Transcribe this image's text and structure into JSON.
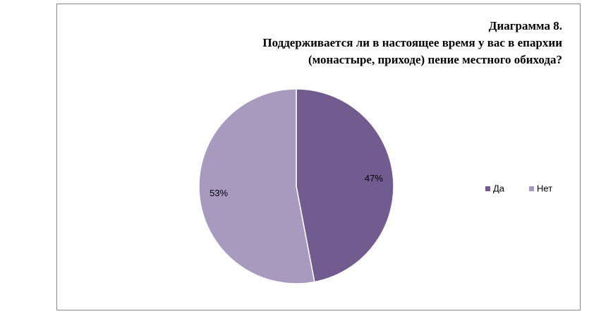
{
  "chart_data": {
    "type": "pie",
    "title": "Диаграмма  8.",
    "subtitle": [
      "Поддерживается  ли в настоящее время у вас в епархии",
      "(монастыре, приходе)  пение местного обихода?"
    ],
    "categories": [
      "Да",
      "Нет"
    ],
    "values": [
      47,
      53
    ],
    "value_labels": [
      "47%",
      "53%"
    ],
    "colors": [
      "#725b8f",
      "#a899bf"
    ],
    "legend": "right"
  }
}
